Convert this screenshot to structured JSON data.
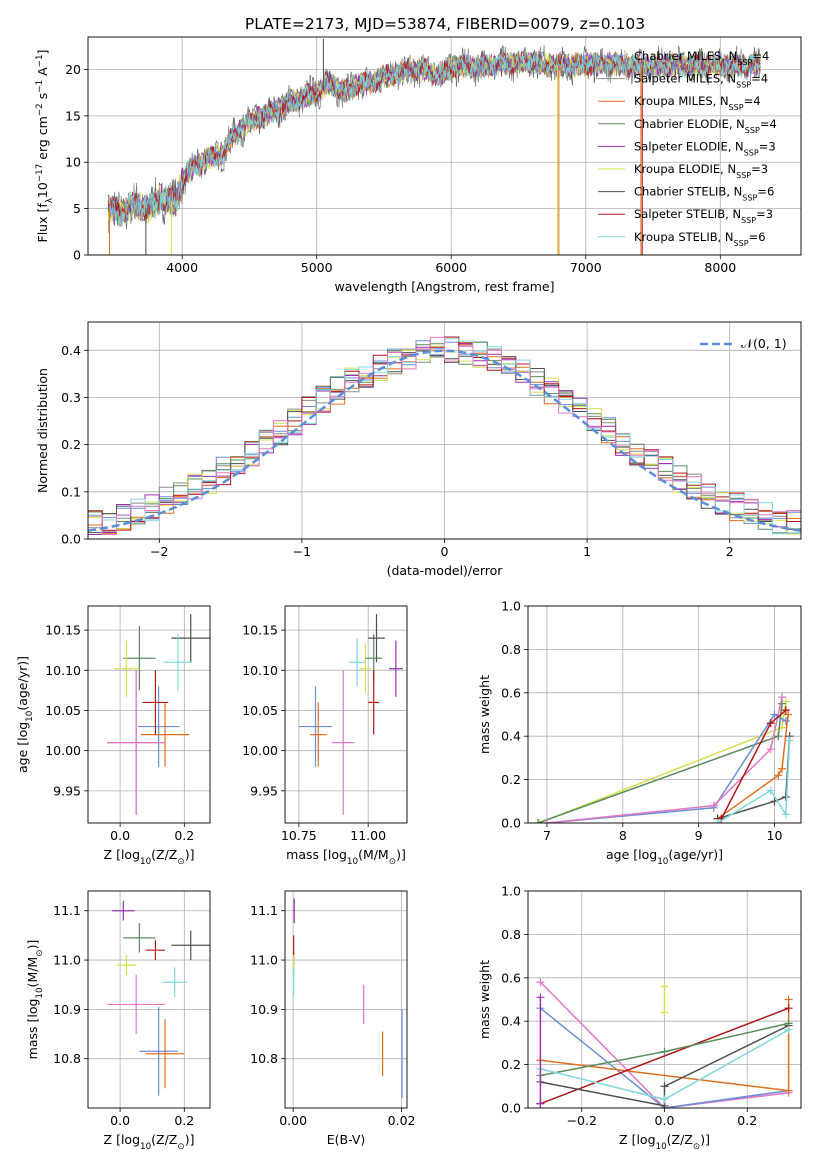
{
  "figure": {
    "title": "PLATE=2173, MJD=53874, FIBERID=0079, z=0.103"
  },
  "series_info": [
    {
      "key": "chm",
      "name": "Chabrier MILES, N",
      "sub": "SSP",
      "tail": "=4",
      "color": "#6b8ed9"
    },
    {
      "key": "sam",
      "name": "Salpeter MILES, N",
      "sub": "SSP",
      "tail": "=4",
      "color": "#8a8a8a"
    },
    {
      "key": "krm",
      "name": "Kroupa MILES, N",
      "sub": "SSP",
      "tail": "=4",
      "color": "#e07020"
    },
    {
      "key": "che",
      "name": "Chabrier ELODIE, N",
      "sub": "SSP",
      "tail": "=4",
      "color": "#5b8c5b"
    },
    {
      "key": "sae",
      "name": "Salpeter ELODIE, N",
      "sub": "SSP",
      "tail": "=3",
      "color": "#9b30b0"
    },
    {
      "key": "kre",
      "name": "Kroupa ELODIE, N",
      "sub": "SSP",
      "tail": "=3",
      "color": "#d4e050"
    },
    {
      "key": "chs",
      "name": "Chabrier STELIB, N",
      "sub": "SSP",
      "tail": "=6",
      "color": "#505050"
    },
    {
      "key": "sas",
      "name": "Salpeter STELIB, N",
      "sub": "SSP",
      "tail": "=3",
      "color": "#b01818"
    },
    {
      "key": "krs",
      "name": "Kroupa STELIB, N",
      "sub": "SSP",
      "tail": "=6",
      "color": "#80d8e0"
    }
  ],
  "chart_data": [
    {
      "id": "spectrum",
      "type": "line",
      "xlabel": "wavelength [Angstrom, rest frame]",
      "ylabel": "Flux [f",
      "ylabel_tail": "10",
      "ylabel_exp": "−17",
      "ylabel_tail2": " erg cm",
      "ylabel_exp2": "−2",
      "ylabel_tail3": " s",
      "ylabel_exp3": "−1",
      "ylabel_tail4": " A",
      "ylabel_exp4": "−1",
      "ylabel_end": "]",
      "xlim": [
        3300,
        8600
      ],
      "ylim": [
        0,
        23.5
      ],
      "xticks": [
        4000,
        5000,
        6000,
        7000,
        8000
      ],
      "yticks": [
        0,
        5,
        10,
        15,
        20
      ],
      "continuum": [
        [
          3450,
          5.0
        ],
        [
          3550,
          4.6
        ],
        [
          3650,
          5.4
        ],
        [
          3750,
          5.0
        ],
        [
          3850,
          6.2
        ],
        [
          3950,
          5.6
        ],
        [
          4000,
          8.2
        ],
        [
          4100,
          9.6
        ],
        [
          4200,
          10.4
        ],
        [
          4300,
          11.0
        ],
        [
          4400,
          13.2
        ],
        [
          4500,
          14.4
        ],
        [
          4600,
          15.0
        ],
        [
          4700,
          15.6
        ],
        [
          4800,
          16.4
        ],
        [
          4900,
          17.0
        ],
        [
          5000,
          17.6
        ],
        [
          5100,
          18.6
        ],
        [
          5200,
          17.6
        ],
        [
          5300,
          18.4
        ],
        [
          5400,
          18.6
        ],
        [
          5500,
          19.2
        ],
        [
          5600,
          19.6
        ],
        [
          5700,
          19.8
        ],
        [
          5800,
          20.0
        ],
        [
          5900,
          19.4
        ],
        [
          6000,
          20.2
        ],
        [
          6100,
          20.4
        ],
        [
          6200,
          20.3
        ],
        [
          6300,
          20.5
        ],
        [
          6400,
          20.6
        ],
        [
          6500,
          20.8
        ],
        [
          6600,
          20.8
        ],
        [
          6700,
          20.6
        ],
        [
          6800,
          20.4
        ],
        [
          6900,
          20.4
        ],
        [
          7000,
          20.6
        ],
        [
          7100,
          20.5
        ],
        [
          7200,
          20.6
        ],
        [
          7300,
          20.5
        ],
        [
          7400,
          20.3
        ],
        [
          7500,
          20.4
        ],
        [
          7600,
          20.5
        ],
        [
          7700,
          20.5
        ],
        [
          7800,
          20.4
        ],
        [
          7900,
          20.4
        ],
        [
          8000,
          20.5
        ],
        [
          8100,
          20.5
        ],
        [
          8200,
          20.4
        ],
        [
          8300,
          20.5
        ]
      ],
      "spikes": [
        [
          3460,
          0,
          "krm"
        ],
        [
          3730,
          0,
          "chs"
        ],
        [
          3920,
          0,
          "kre"
        ],
        [
          5050,
          23.3,
          "chs"
        ],
        [
          6790,
          0,
          "kre"
        ],
        [
          6800,
          0,
          "krm"
        ],
        [
          7410,
          0,
          "krm"
        ],
        [
          7420,
          0,
          "sas"
        ]
      ],
      "legend": "upper right"
    },
    {
      "id": "residuals",
      "type": "histogram",
      "xlabel": "(data-model)/error",
      "ylabel": "Normed distribution",
      "xlim": [
        -2.5,
        2.5
      ],
      "ylim": [
        0,
        0.46
      ],
      "xticks": [
        -2,
        -1,
        0,
        1,
        2
      ],
      "xtick_labels": [
        "−2",
        "−1",
        "0",
        "1",
        "2"
      ],
      "yticks": [
        0.0,
        0.1,
        0.2,
        0.3,
        0.4
      ],
      "ytick_labels": [
        "0.0",
        "0.1",
        "0.2",
        "0.3",
        "0.4"
      ],
      "bin_width": 0.1,
      "gaussian_label": "𝒩(0, 1)",
      "gaussian_color": "#5b8fd9",
      "grid": true
    },
    {
      "id": "age_vs_Z",
      "type": "scatter",
      "xlabel": "Z [log",
      "xlabel_sub": "10",
      "xlabel_tail": "(Z/Z",
      "xlabel_sub2": "⊙",
      "xlabel_end": ")]",
      "ylabel": "age  [log",
      "ylabel_sub": "10",
      "ylabel_tail": "(age/yr)]",
      "xlim": [
        -0.1,
        0.28
      ],
      "ylim": [
        9.91,
        10.18
      ],
      "xticks": [
        0.0,
        0.2
      ],
      "xtick_labels": [
        "0.0",
        "0.2"
      ],
      "yticks": [
        9.95,
        10.0,
        10.05,
        10.1,
        10.15
      ],
      "ytick_labels": [
        "9.95",
        "10.00",
        "10.05",
        "10.10",
        "10.15"
      ],
      "points": [
        {
          "s": "chm",
          "x": 0.12,
          "y": 10.03,
          "xe": 0.065,
          "ye": 0.05
        },
        {
          "s": "krm",
          "x": 0.14,
          "y": 10.02,
          "xe": 0.075,
          "ye": 0.04
        },
        {
          "s": "sam",
          "x": 0.05,
          "y": 10.01,
          "xe": 0.09,
          "ye": 0.09
        },
        {
          "s": "che",
          "x": 0.06,
          "y": 10.115,
          "xe": 0.05,
          "ye": 0.04
        },
        {
          "s": "kre",
          "x": 0.02,
          "y": 10.102,
          "xe": 0.04,
          "ye": 0.035
        },
        {
          "s": "chs",
          "x": 0.22,
          "y": 10.14,
          "xe": 0.06,
          "ye": 0.03
        },
        {
          "s": "sas",
          "x": 0.11,
          "y": 10.06,
          "xe": 0.04,
          "ye": 0.04
        },
        {
          "s": "krs",
          "x": 0.18,
          "y": 10.11,
          "xe": 0.045,
          "ye": 0.035
        },
        {
          "s": "pink",
          "x": 0.05,
          "y": 10.01,
          "xe": 0.09,
          "ye": 0.09
        }
      ]
    },
    {
      "id": "age_vs_mass",
      "type": "scatter",
      "xlabel": "mass [log",
      "xlabel_sub": "10",
      "xlabel_tail": "(M/M",
      "xlabel_sub2": "⊙",
      "xlabel_end": ")]",
      "xlim": [
        10.7,
        11.14
      ],
      "ylim": [
        9.91,
        10.18
      ],
      "xticks": [
        10.75,
        11.0
      ],
      "xtick_labels": [
        "10.75",
        "11.00"
      ],
      "yticks": [
        9.95,
        10.0,
        10.05,
        10.1,
        10.15
      ],
      "ytick_labels": [
        "9.95",
        "10.00",
        "10.05",
        "10.10",
        "10.15"
      ],
      "points": [
        {
          "s": "chm",
          "x": 10.81,
          "y": 10.03,
          "xe": 0.06,
          "ye": 0.05
        },
        {
          "s": "krm",
          "x": 10.82,
          "y": 10.02,
          "xe": 0.03,
          "ye": 0.04
        },
        {
          "s": "pink",
          "x": 10.91,
          "y": 10.01,
          "xe": 0.04,
          "ye": 0.09
        },
        {
          "s": "krs",
          "x": 10.96,
          "y": 10.11,
          "xe": 0.03,
          "ye": 0.03
        },
        {
          "s": "kre",
          "x": 10.99,
          "y": 10.102,
          "xe": 0.02,
          "ye": 0.03
        },
        {
          "s": "che",
          "x": 11.02,
          "y": 10.115,
          "xe": 0.03,
          "ye": 0.03
        },
        {
          "s": "chs",
          "x": 11.03,
          "y": 10.14,
          "xe": 0.03,
          "ye": 0.03
        },
        {
          "s": "sas",
          "x": 11.02,
          "y": 10.06,
          "xe": 0.02,
          "ye": 0.04
        },
        {
          "s": "sae",
          "x": 11.1,
          "y": 10.102,
          "xe": 0.025,
          "ye": 0.035
        }
      ]
    },
    {
      "id": "weights_vs_age",
      "type": "line",
      "xlabel": "age  [log",
      "xlabel_sub": "10",
      "xlabel_tail": "(age/yr)]",
      "ylabel": "mass weight",
      "xlim": [
        6.75,
        10.35
      ],
      "ylim": [
        0,
        1.0
      ],
      "xticks": [
        7,
        8,
        9,
        10
      ],
      "xtick_labels": [
        "7",
        "8",
        "9",
        "10"
      ],
      "yticks": [
        0.0,
        0.2,
        0.4,
        0.6,
        0.8,
        1.0
      ],
      "ytick_labels": [
        "0.0",
        "0.2",
        "0.4",
        "0.6",
        "0.8",
        "1.0"
      ],
      "series": [
        {
          "s": "kre",
          "pts": [
            [
              6.9,
              0.0
            ],
            [
              10.1,
              0.44
            ],
            [
              10.15,
              0.56
            ]
          ]
        },
        {
          "s": "che",
          "pts": [
            [
              6.88,
              0.0
            ],
            [
              10.05,
              0.4
            ],
            [
              10.1,
              0.55
            ]
          ]
        },
        {
          "s": "chm",
          "pts": [
            [
              7.0,
              0.0
            ],
            [
              9.2,
              0.07
            ],
            [
              10.0,
              0.5
            ],
            [
              10.15,
              0.47
            ]
          ]
        },
        {
          "s": "pink",
          "pts": [
            [
              7.0,
              0.0
            ],
            [
              9.2,
              0.08
            ],
            [
              9.95,
              0.34
            ],
            [
              10.1,
              0.58
            ]
          ]
        },
        {
          "s": "krm",
          "pts": [
            [
              9.25,
              0.02
            ],
            [
              10.05,
              0.22
            ],
            [
              10.1,
              0.25
            ],
            [
              10.18,
              0.5
            ]
          ]
        },
        {
          "s": "chs",
          "pts": [
            [
              9.25,
              0.02
            ],
            [
              10.0,
              0.1
            ],
            [
              10.15,
              0.12
            ],
            [
              10.2,
              0.4
            ]
          ]
        },
        {
          "s": "sas",
          "pts": [
            [
              9.3,
              0.02
            ],
            [
              9.95,
              0.46
            ],
            [
              10.15,
              0.52
            ]
          ]
        },
        {
          "s": "krs",
          "pts": [
            [
              9.25,
              0.0
            ],
            [
              9.95,
              0.15
            ],
            [
              10.15,
              0.04
            ],
            [
              10.2,
              0.38
            ]
          ]
        }
      ],
      "grid": true
    },
    {
      "id": "mass_vs_Z",
      "type": "scatter",
      "xlabel": "Z [log",
      "xlabel_sub": "10",
      "xlabel_tail": "(Z/Z",
      "xlabel_sub2": "⊙",
      "xlabel_end": ")]",
      "ylabel": "mass [log",
      "ylabel_sub": "10",
      "ylabel_tail": "(M/M",
      "ylabel_sub2": "⊙",
      "ylabel_end": ")]",
      "xlim": [
        -0.1,
        0.28
      ],
      "ylim": [
        10.7,
        11.14
      ],
      "xticks": [
        0.0,
        0.2
      ],
      "xtick_labels": [
        "0.0",
        "0.2"
      ],
      "yticks": [
        10.8,
        10.9,
        11.0,
        11.1
      ],
      "ytick_labels": [
        "10.8",
        "10.9",
        "11.0",
        "11.1"
      ],
      "points": [
        {
          "s": "sae",
          "x": 0.01,
          "y": 11.1,
          "xe": 0.035,
          "ye": 0.02
        },
        {
          "s": "che",
          "x": 0.06,
          "y": 11.045,
          "xe": 0.05,
          "ye": 0.03
        },
        {
          "s": "kre",
          "x": 0.02,
          "y": 10.99,
          "xe": 0.03,
          "ye": 0.02
        },
        {
          "s": "sas",
          "x": 0.11,
          "y": 11.02,
          "xe": 0.03,
          "ye": 0.02
        },
        {
          "s": "chs",
          "x": 0.22,
          "y": 11.03,
          "xe": 0.06,
          "ye": 0.03
        },
        {
          "s": "krs",
          "x": 0.17,
          "y": 10.955,
          "xe": 0.04,
          "ye": 0.03
        },
        {
          "s": "pink",
          "x": 0.05,
          "y": 10.91,
          "xe": 0.09,
          "ye": 0.06
        },
        {
          "s": "chm",
          "x": 0.12,
          "y": 10.815,
          "xe": 0.06,
          "ye": 0.09
        },
        {
          "s": "krm",
          "x": 0.14,
          "y": 10.81,
          "xe": 0.06,
          "ye": 0.07
        }
      ]
    },
    {
      "id": "mass_vs_ebv",
      "type": "scatter",
      "xlabel": "E(B-V)",
      "xlim": [
        -0.0015,
        0.021
      ],
      "ylim": [
        10.7,
        11.14
      ],
      "xticks": [
        0.0,
        0.02
      ],
      "xtick_labels": [
        "0.00",
        "0.02"
      ],
      "yticks": [
        10.8,
        10.9,
        11.0,
        11.1
      ],
      "ytick_labels": [
        "10.8",
        "10.9",
        "11.0",
        "11.1"
      ],
      "points": [
        {
          "s": "sae",
          "x": 0.0002,
          "y": 11.1,
          "xe": 0,
          "ye": 0.025
        },
        {
          "s": "sas",
          "x": 0.0001,
          "y": 11.02,
          "xe": 0,
          "ye": 0.03
        },
        {
          "s": "kre",
          "x": 0.0001,
          "y": 10.99,
          "xe": 0,
          "ye": 0.02
        },
        {
          "s": "krs",
          "x": 0.0001,
          "y": 10.955,
          "xe": 0,
          "ye": 0.03
        },
        {
          "s": "pink",
          "x": 0.013,
          "y": 10.91,
          "xe": 0,
          "ye": 0.04
        },
        {
          "s": "krm",
          "x": 0.0165,
          "y": 10.81,
          "xe": 0,
          "ye": 0.045
        },
        {
          "s": "chm",
          "x": 0.0201,
          "y": 10.81,
          "xe": 0,
          "ye": 0.09
        }
      ]
    },
    {
      "id": "weights_vs_Z",
      "type": "line",
      "xlabel": "Z [log",
      "xlabel_sub": "10",
      "xlabel_tail": "(Z/Z",
      "xlabel_sub2": "⊙",
      "xlabel_end": ")]",
      "ylabel": "mass weight",
      "xlim": [
        -0.33,
        0.33
      ],
      "ylim": [
        0,
        1.0
      ],
      "xticks": [
        -0.2,
        0.0,
        0.2
      ],
      "xtick_labels": [
        "−0.2",
        "0.0",
        "0.2"
      ],
      "yticks": [
        0.0,
        0.2,
        0.4,
        0.6,
        0.8,
        1.0
      ],
      "ytick_labels": [
        "0.0",
        "0.2",
        "0.4",
        "0.6",
        "0.8",
        "1.0"
      ],
      "series": [
        {
          "s": "pink",
          "pts": [
            [
              -0.3,
              0.58
            ],
            [
              0.0,
              0.0
            ],
            [
              0.3,
              0.07
            ]
          ]
        },
        {
          "s": "chm",
          "pts": [
            [
              -0.3,
              0.46
            ],
            [
              0.0,
              0.0
            ],
            [
              0.3,
              0.08
            ]
          ]
        },
        {
          "s": "krm",
          "pts": [
            [
              -0.3,
              0.22
            ],
            [
              0.3,
              0.08
            ],
            [
              0.3,
              0.5
            ]
          ]
        },
        {
          "s": "sas",
          "pts": [
            [
              -0.3,
              0.02
            ],
            [
              0.3,
              0.46
            ]
          ]
        },
        {
          "s": "chs",
          "pts": [
            [
              -0.3,
              0.12
            ],
            [
              0.0,
              0.01
            ],
            [
              0.0,
              0.1
            ],
            [
              0.3,
              0.38
            ]
          ]
        },
        {
          "s": "che",
          "pts": [
            [
              -0.3,
              0.15
            ],
            [
              0.0,
              0.26
            ],
            [
              0.3,
              0.39
            ]
          ]
        },
        {
          "s": "krs",
          "pts": [
            [
              -0.3,
              0.18
            ],
            [
              0.0,
              0.04
            ],
            [
              0.3,
              0.36
            ]
          ]
        },
        {
          "s": "kre",
          "pts": [
            [
              0.0,
              0.44
            ],
            [
              0.0,
              0.56
            ]
          ]
        },
        {
          "s": "sae",
          "pts": [
            [
              -0.3,
              0.51
            ],
            [
              -0.3,
              0.02
            ]
          ]
        }
      ],
      "grid": true
    }
  ]
}
